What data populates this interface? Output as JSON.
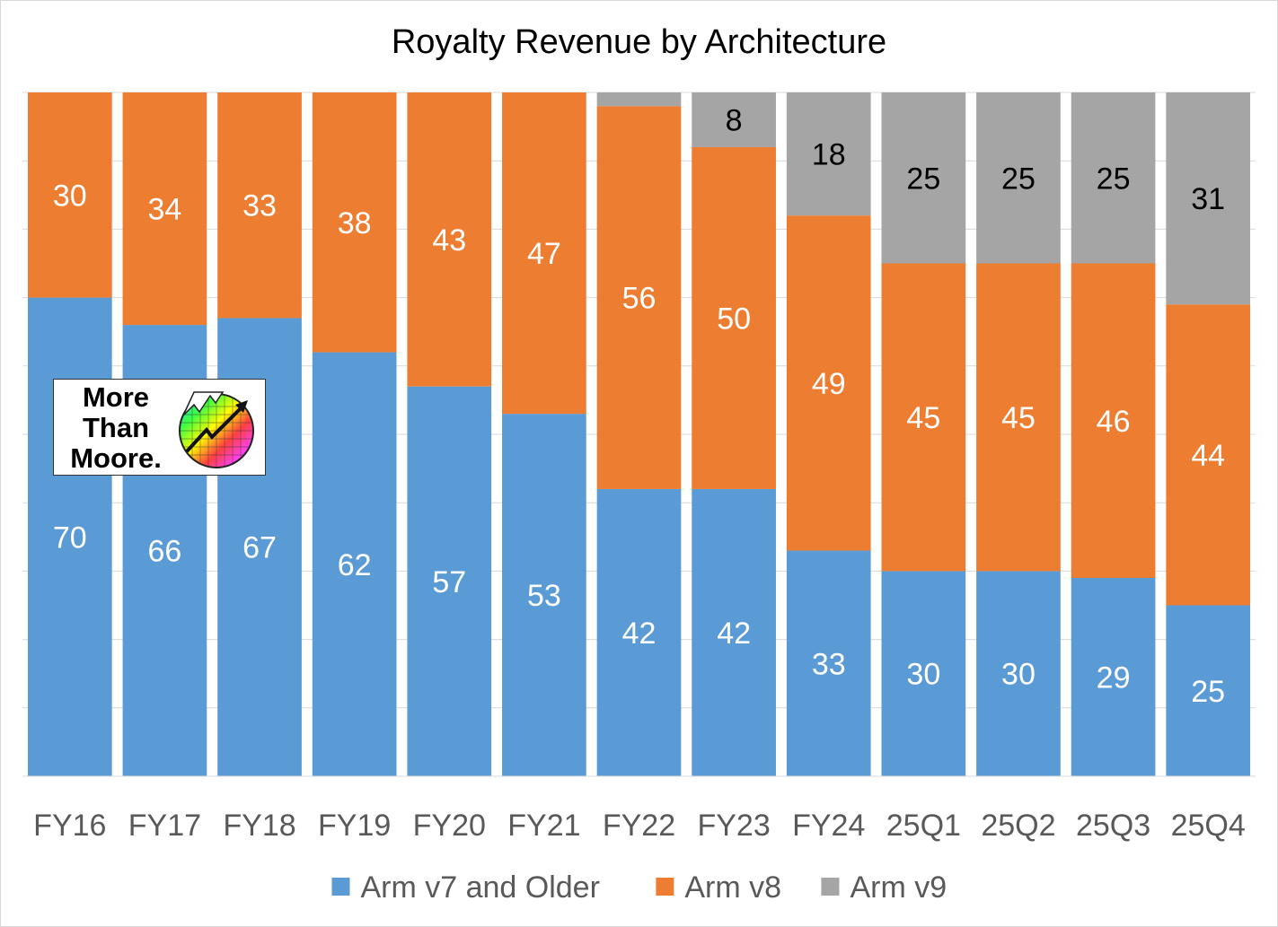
{
  "chart_data": {
    "type": "bar",
    "stacked": true,
    "percent_stacked": true,
    "title": "Royalty Revenue by Architecture",
    "xlabel": "",
    "ylabel": "",
    "ylim": [
      0,
      100
    ],
    "grid": true,
    "legend_position": "bottom",
    "categories": [
      "FY16",
      "FY17",
      "FY18",
      "FY19",
      "FY20",
      "FY21",
      "FY22",
      "FY23",
      "FY24",
      "25Q1",
      "25Q2",
      "25Q3",
      "25Q4"
    ],
    "series": [
      {
        "name": "Arm v7 and Older",
        "color": "#5b9bd5",
        "label_color": "#ffffff",
        "values": [
          70,
          66,
          67,
          62,
          57,
          53,
          42,
          42,
          33,
          30,
          30,
          29,
          25
        ],
        "labels": [
          "70",
          "66",
          "67",
          "62",
          "57",
          "53",
          "42",
          "42",
          "33",
          "30",
          "30",
          "29",
          "25"
        ]
      },
      {
        "name": "Arm v8",
        "color": "#ed7d31",
        "label_color": "#ffffff",
        "values": [
          30,
          34,
          33,
          38,
          43,
          47,
          56,
          50,
          49,
          45,
          45,
          46,
          44
        ],
        "labels": [
          "30",
          "34",
          "33",
          "38",
          "43",
          "47",
          "56",
          "50",
          "49",
          "45",
          "45",
          "46",
          "44"
        ]
      },
      {
        "name": "Arm v9",
        "color": "#a5a5a5",
        "label_color": "#000000",
        "values": [
          0,
          0,
          0,
          0,
          0,
          0,
          2,
          8,
          18,
          25,
          25,
          25,
          31
        ],
        "labels": [
          "",
          "",
          "",
          "",
          "",
          "",
          "",
          "8",
          "18",
          "25",
          "25",
          "25",
          "31"
        ]
      }
    ]
  },
  "logo": {
    "line1": "More",
    "line2": "Than",
    "line3": "Moore."
  }
}
